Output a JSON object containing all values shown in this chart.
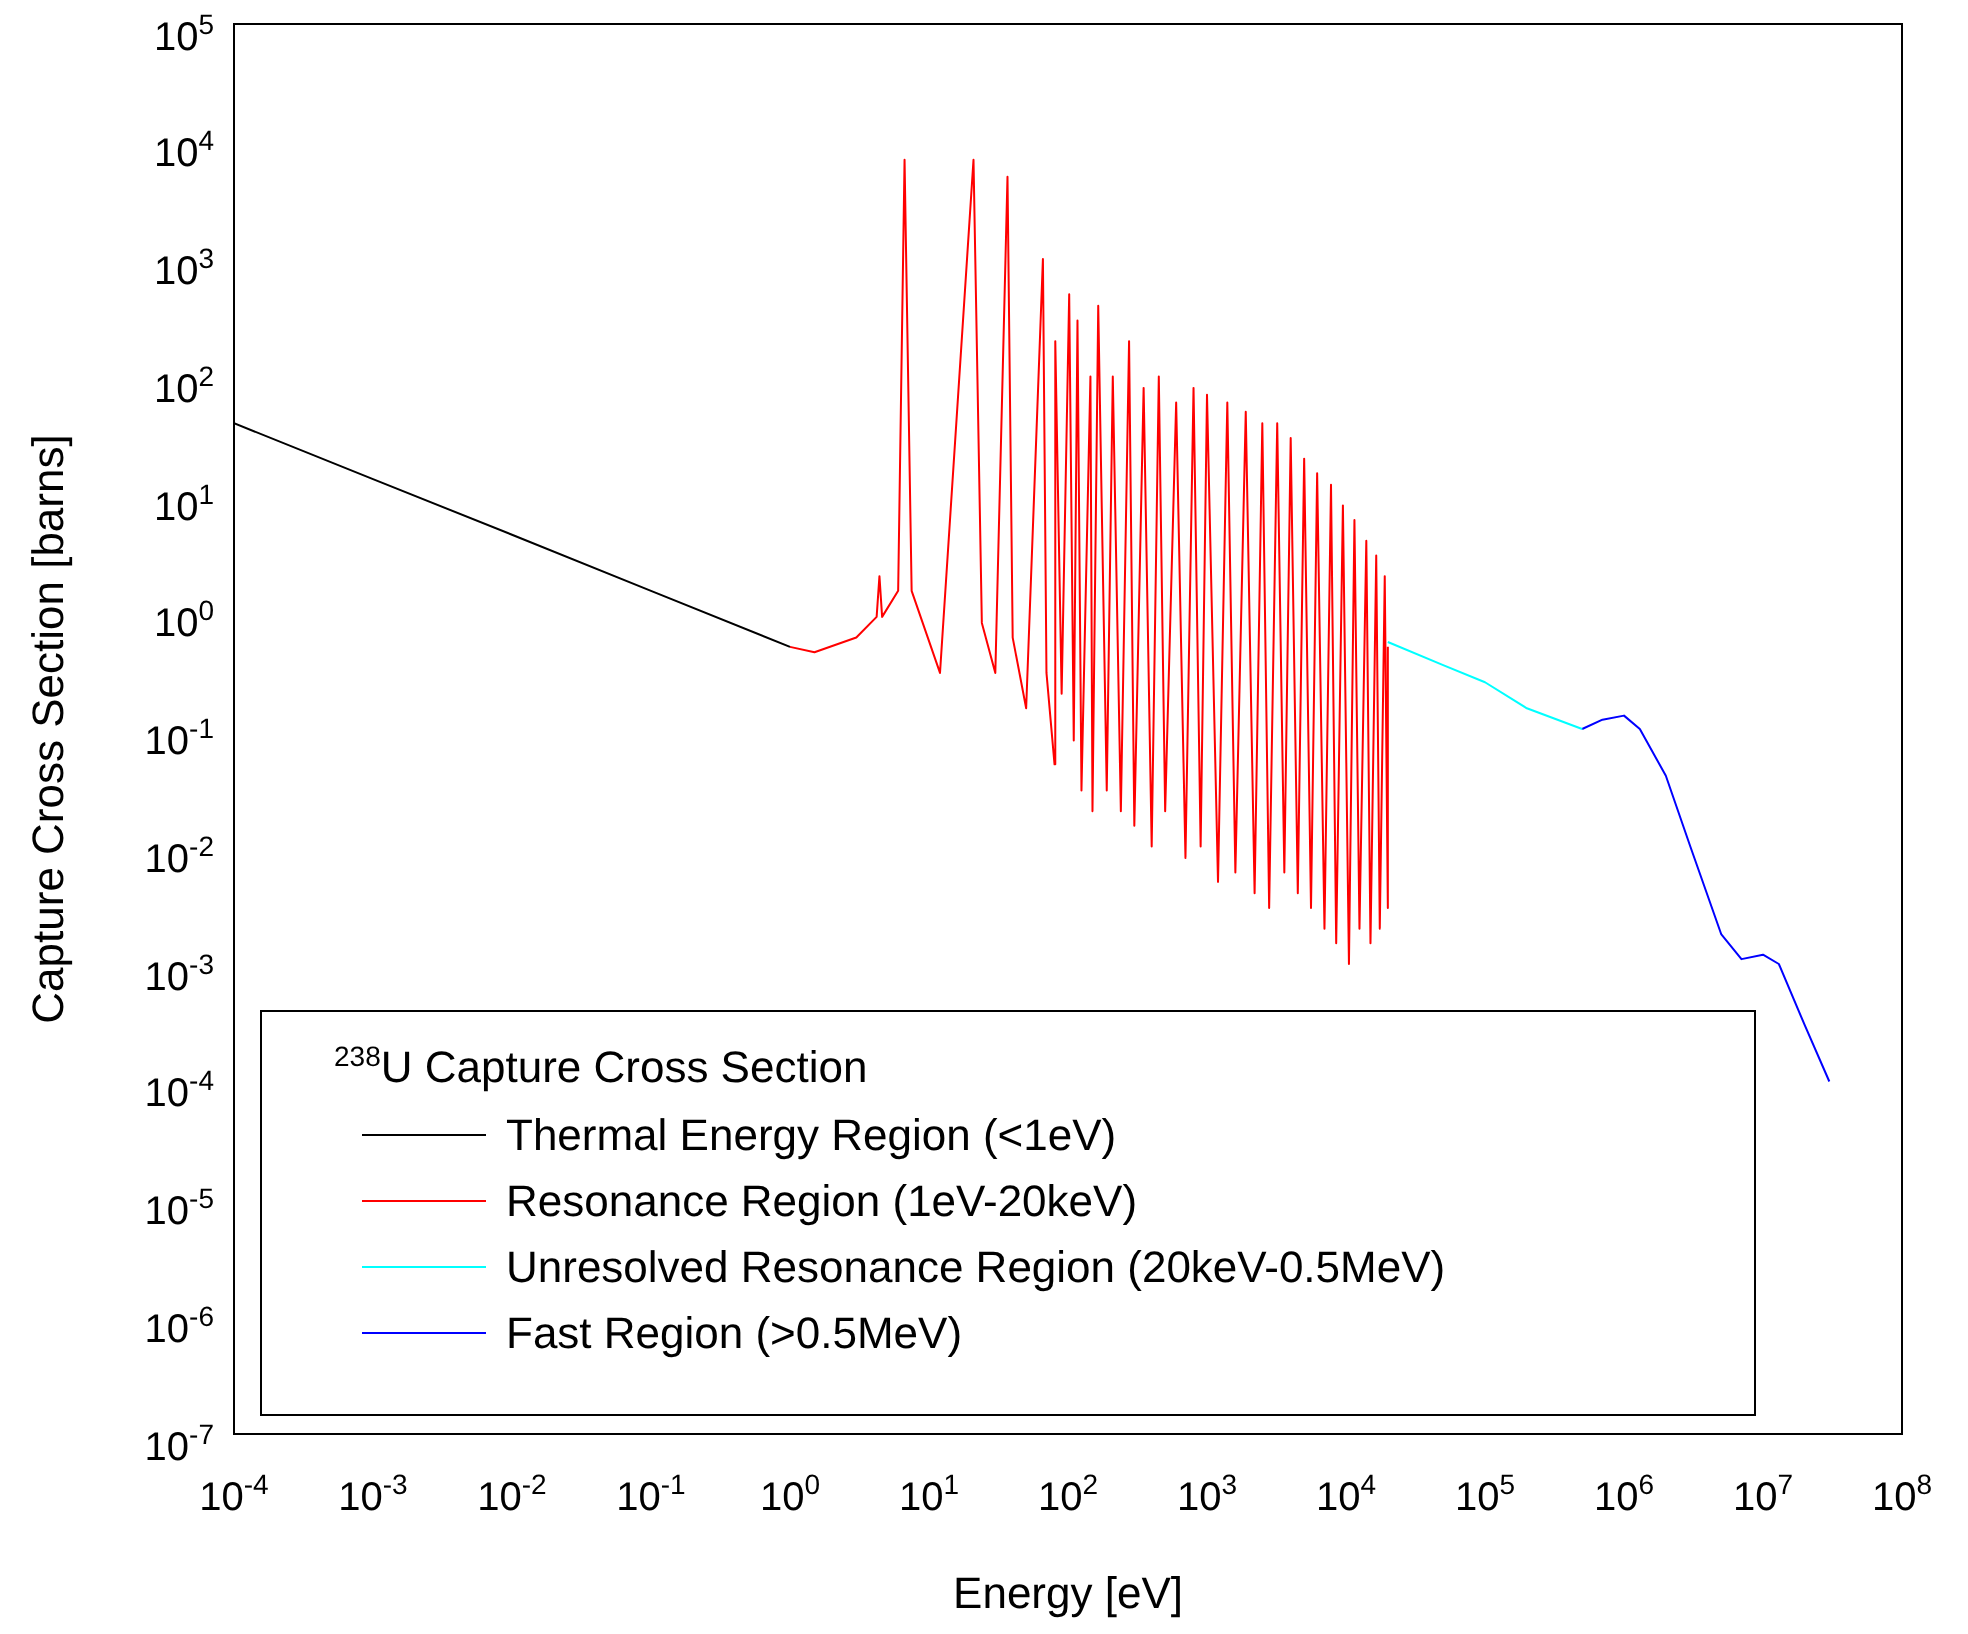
{
  "chart_data": {
    "type": "line",
    "xlabel": "Energy [eV]",
    "ylabel": "Capture Cross Section [barns]",
    "legend_title": "$^{238}$U Capture Cross Section",
    "legend": "bottom left",
    "log": "xy",
    "grid": false,
    "marker": "none",
    "line_style": "solid",
    "xlim": [
      0.0001,
      100000000
    ],
    "ylim": [
      1e-07,
      100000
    ],
    "xticks": [
      {
        "value": 0.0001,
        "label": "10$^{-4}$"
      },
      {
        "value": 0.001,
        "label": "10$^{-3}$"
      },
      {
        "value": 0.01,
        "label": "10$^{-2}$"
      },
      {
        "value": 0.1,
        "label": "10$^{-1}$"
      },
      {
        "value": 1,
        "label": "10$^{0}$"
      },
      {
        "value": 10,
        "label": "10$^{1}$"
      },
      {
        "value": 100,
        "label": "10$^{2}$"
      },
      {
        "value": 1000,
        "label": "10$^{3}$"
      },
      {
        "value": 10000,
        "label": "10$^{4}$"
      },
      {
        "value": 100000,
        "label": "10$^{5}$"
      },
      {
        "value": 1000000,
        "label": "10$^{6}$"
      },
      {
        "value": 10000000,
        "label": "10$^{7}$"
      },
      {
        "value": 100000000,
        "label": "10$^{8}$"
      }
    ],
    "yticks": [
      {
        "value": 1e-07,
        "label": "10$^{-7}$"
      },
      {
        "value": 1e-06,
        "label": "10$^{-6}$"
      },
      {
        "value": 1e-05,
        "label": "10$^{-5}$"
      },
      {
        "value": 0.0001,
        "label": "10$^{-4}$"
      },
      {
        "value": 0.001,
        "label": "10$^{-3}$"
      },
      {
        "value": 0.01,
        "label": "10$^{-2}$"
      },
      {
        "value": 0.1,
        "label": "10$^{-1}$"
      },
      {
        "value": 1,
        "label": "10$^{0}$"
      },
      {
        "value": 10,
        "label": "10$^{1}$"
      },
      {
        "value": 100,
        "label": "10$^{2}$"
      },
      {
        "value": 1000,
        "label": "10$^{3}$"
      },
      {
        "value": 10000,
        "label": "10$^{4}$"
      },
      {
        "value": 100000,
        "label": "10$^{5}$"
      }
    ],
    "series": [
      {
        "name": "Thermal Energy Region (<1eV)",
        "color": "#000000",
        "x": [
          0.0001,
          0.001,
          0.01,
          0.1,
          1
        ],
        "values": [
          40,
          13.4,
          4.5,
          1.5,
          0.5
        ]
      },
      {
        "name": "Resonance Region (1eV-20keV)",
        "color": "#ff0000",
        "x": [
          1,
          1.5,
          3,
          4.2,
          4.4,
          4.6,
          6,
          6.67,
          7.5,
          12,
          20.9,
          24,
          30,
          36.7,
          40,
          50,
          66,
          70,
          80,
          81,
          90,
          102,
          110,
          117,
          125,
          145,
          150,
          165,
          190,
          210,
          240,
          275,
          300,
          350,
          400,
          450,
          500,
          600,
          700,
          800,
          900,
          1000,
          1200,
          1400,
          1600,
          1900,
          2200,
          2500,
          2800,
          3200,
          3600,
          4000,
          4500,
          5000,
          5600,
          6200,
          7000,
          7800,
          8500,
          9500,
          10500,
          11500,
          12500,
          14000,
          15000,
          16500,
          17500,
          19000,
          20000,
          20000
        ],
        "values": [
          0.5,
          0.45,
          0.6,
          0.9,
          2,
          0.9,
          1.5,
          7000,
          1.5,
          0.3,
          7000,
          0.8,
          0.3,
          5000,
          0.6,
          0.15,
          1000,
          0.3,
          0.05,
          200,
          0.2,
          500,
          0.08,
          300,
          0.03,
          100,
          0.02,
          400,
          0.03,
          100,
          0.02,
          200,
          0.015,
          80,
          0.01,
          100,
          0.02,
          60,
          0.008,
          80,
          0.01,
          70,
          0.005,
          60,
          0.006,
          50,
          0.004,
          40,
          0.003,
          40,
          0.006,
          30,
          0.004,
          20,
          0.003,
          15,
          0.002,
          12,
          0.0015,
          8,
          0.001,
          6,
          0.002,
          4,
          0.0015,
          3,
          0.002,
          2,
          0.003,
          0.5
        ]
      },
      {
        "name": "Unresolved Resonance Region (20keV-0.5MeV)",
        "color": "#00ffff",
        "x": [
          20000,
          50000,
          100000,
          200000,
          500000
        ],
        "values": [
          0.55,
          0.35,
          0.25,
          0.15,
          0.1
        ]
      },
      {
        "name": "Fast Region (>0.5MeV)",
        "color": "#0000ff",
        "x": [
          500000,
          700000,
          1000000,
          1300000,
          2000000,
          3000000,
          5000000,
          7000000,
          10000000,
          13000000,
          20000000,
          30000000
        ],
        "values": [
          0.1,
          0.12,
          0.13,
          0.1,
          0.04,
          0.01,
          0.0018,
          0.0011,
          0.0012,
          0.001,
          0.0003,
          0.0001
        ]
      }
    ]
  }
}
